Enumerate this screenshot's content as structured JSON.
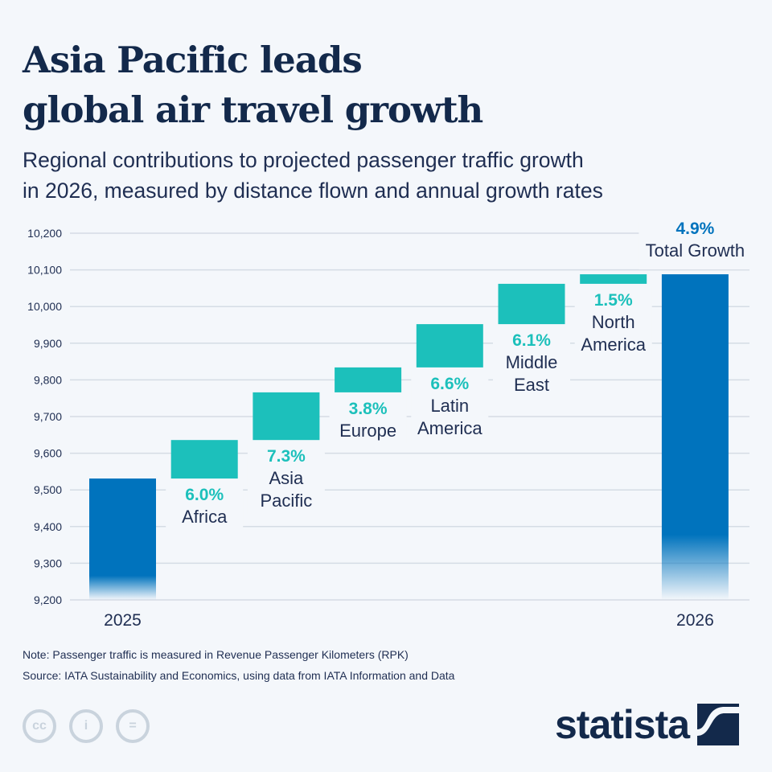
{
  "header": {
    "title_line1": "Asia Pacific leads",
    "title_line2": "global air travel growth",
    "subtitle_line1": "Regional contributions to projected passenger traffic growth",
    "subtitle_line2": "in 2026, measured by distance flown and annual growth rates"
  },
  "chart_data": {
    "type": "waterfall",
    "ylim": [
      9200,
      10200
    ],
    "yticks": [
      9200,
      9300,
      9400,
      9500,
      9600,
      9700,
      9800,
      9900,
      10000,
      10100,
      10200
    ],
    "ytick_labels": [
      "9,200",
      "9,300",
      "9,400",
      "9,500",
      "9,600",
      "9,700",
      "9,800",
      "9,900",
      "10,000",
      "10,100",
      "10,200"
    ],
    "grid": true,
    "colors": {
      "total": "#0073bd",
      "increment": "#1cc0bb"
    },
    "bars": [
      {
        "category": "2025",
        "kind": "total",
        "start": 9200,
        "end": 9531
      },
      {
        "category": "Africa",
        "kind": "increment",
        "start": 9531,
        "end": 9636,
        "label": "6.0%"
      },
      {
        "category": "Asia Pacific",
        "kind": "increment",
        "start": 9636,
        "end": 9766,
        "label": "7.3%"
      },
      {
        "category": "Europe",
        "kind": "increment",
        "start": 9766,
        "end": 9834,
        "label": "3.8%"
      },
      {
        "category": "Latin America",
        "kind": "increment",
        "start": 9834,
        "end": 9952,
        "label": "6.6%"
      },
      {
        "category": "Middle East",
        "kind": "increment",
        "start": 9952,
        "end": 10062,
        "label": "6.1%"
      },
      {
        "category": "North America",
        "kind": "increment",
        "start": 10062,
        "end": 10088,
        "label": "1.5%"
      },
      {
        "category": "2026",
        "kind": "total",
        "start": 9200,
        "end": 10088,
        "label": "4.9%",
        "caption": "Total Growth"
      }
    ]
  },
  "footer": {
    "note": "Note: Passenger traffic is measured in Revenue Passenger Kilometers (RPK)",
    "source": "Source: IATA Sustainability and Economics, using data from IATA Information and Data",
    "brand": "statista",
    "license_icons": [
      "cc-icon",
      "attribution-icon",
      "no-derivatives-icon"
    ]
  }
}
